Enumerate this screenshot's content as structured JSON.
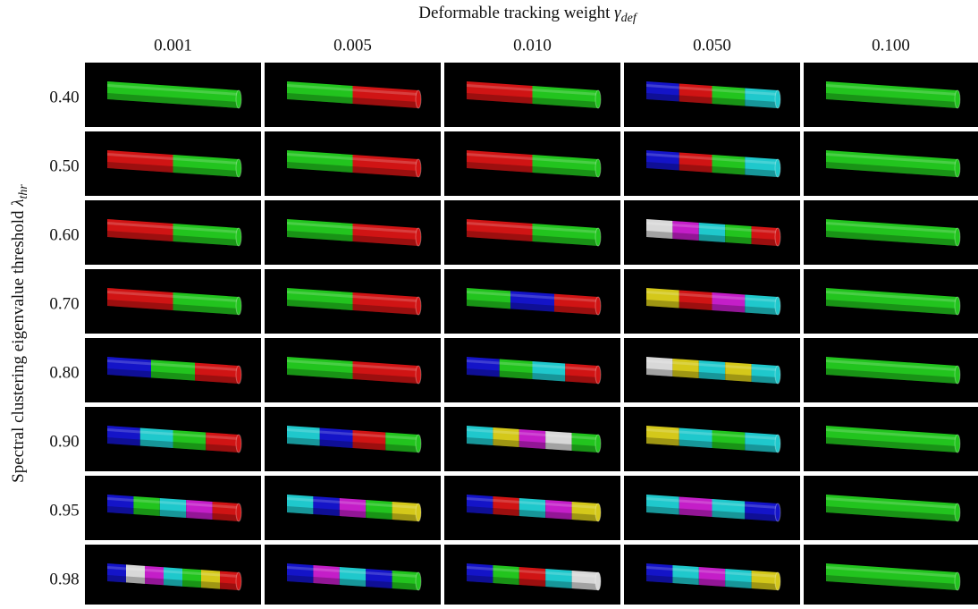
{
  "header": {
    "title": "Deformable tracking weight",
    "symbol": "γ",
    "subscript": "def"
  },
  "y_axis": {
    "title": "Spectral clustering eigenvalue threshold",
    "symbol": "λ",
    "subscript": "thr"
  },
  "columns": [
    "0.001",
    "0.005",
    "0.010",
    "0.050",
    "0.100"
  ],
  "rows": [
    "0.40",
    "0.50",
    "0.60",
    "0.70",
    "0.80",
    "0.90",
    "0.95",
    "0.98"
  ]
}
